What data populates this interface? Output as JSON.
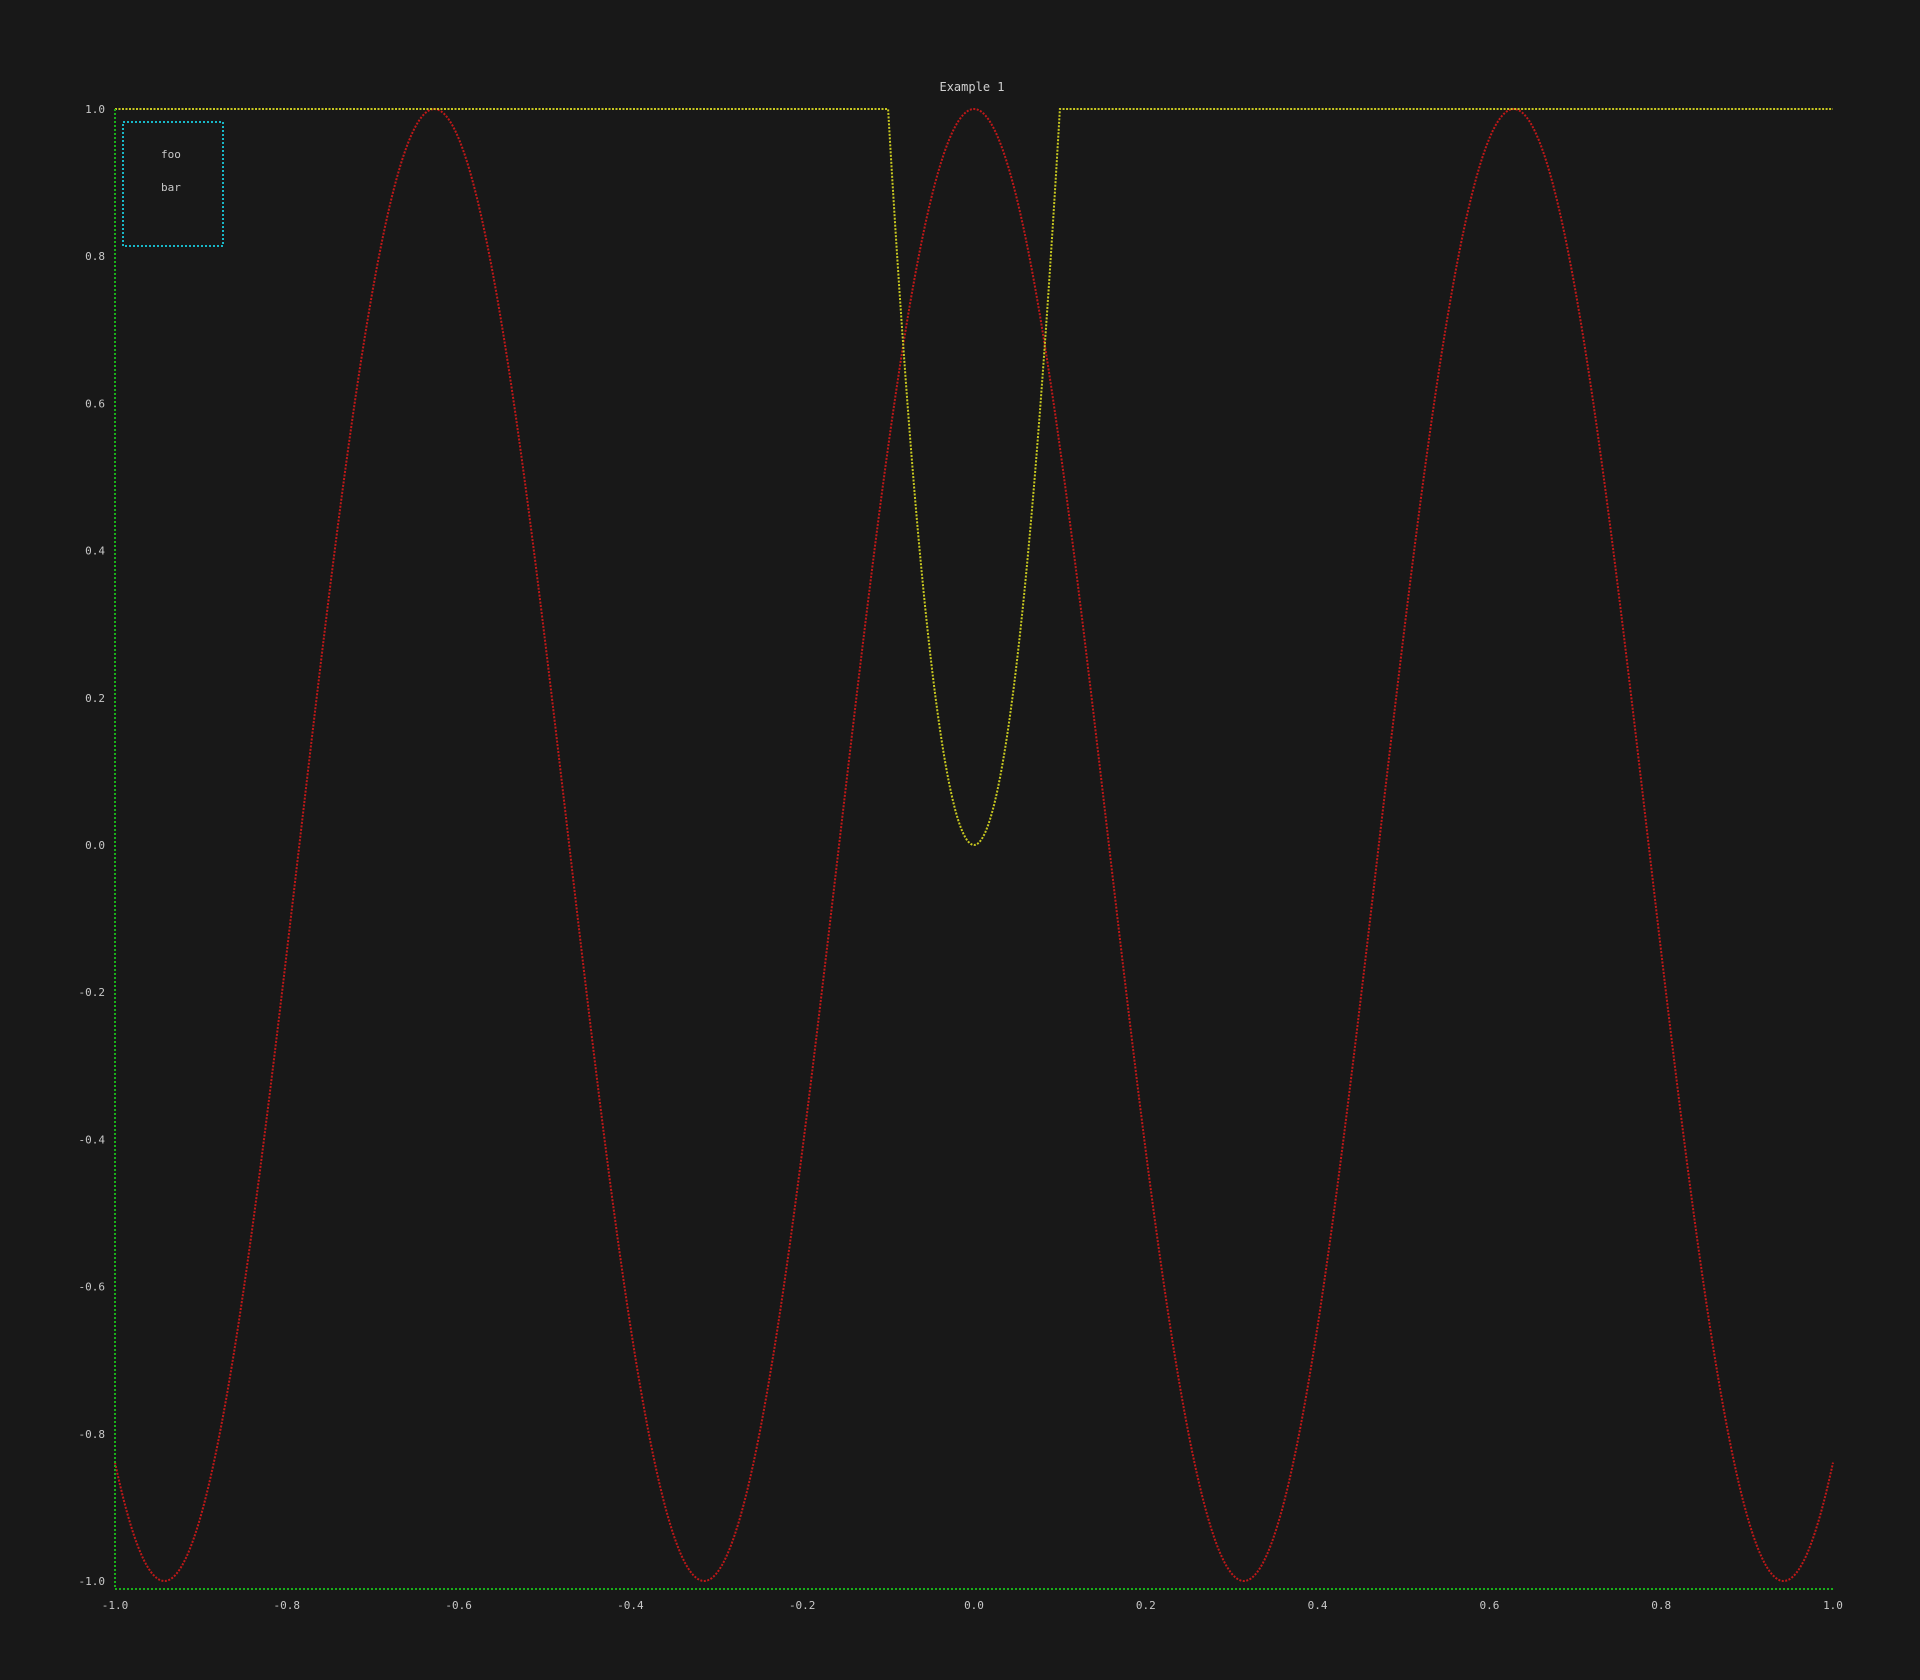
{
  "chart_data": {
    "type": "line",
    "title": "Example 1",
    "xlabel": "",
    "ylabel": "",
    "xlim": [
      -1.0,
      1.0
    ],
    "ylim": [
      -1.0,
      1.0
    ],
    "x_ticks": [
      "-1.0",
      "-0.8",
      "-0.6",
      "-0.4",
      "-0.2",
      "0.0",
      "0.2",
      "0.4",
      "0.6",
      "0.8",
      "1.0"
    ],
    "y_ticks": [
      "1.0",
      "0.8",
      "0.6",
      "0.4",
      "0.2",
      "0.0",
      "-0.2",
      "-0.4",
      "-0.6",
      "-0.8",
      "-1.0"
    ],
    "grid": false,
    "legend_position": "top-left",
    "legend": [
      "foo",
      "bar"
    ],
    "series": [
      {
        "name": "foo",
        "color": "#c01818",
        "formula": "cos(10x)",
        "x": [
          -1.0,
          -0.943,
          -0.628,
          -0.314,
          0.0,
          0.314,
          0.628,
          0.943,
          1.0
        ],
        "y": [
          -0.84,
          -1.0,
          1.0,
          -1.0,
          1.0,
          -1.0,
          1.0,
          -1.0,
          -0.84
        ]
      },
      {
        "name": "bar",
        "color": "#c8c820",
        "formula": "min(1, 100x^2)",
        "x": [
          -1.0,
          -0.1,
          -0.05,
          0.0,
          0.05,
          0.1,
          1.0
        ],
        "y": [
          1.0,
          1.0,
          0.25,
          0.0,
          0.25,
          1.0,
          1.0
        ]
      }
    ],
    "colors": {
      "axes": "#18b018",
      "legend_border": "#18b8c8",
      "background": "#181818"
    }
  }
}
